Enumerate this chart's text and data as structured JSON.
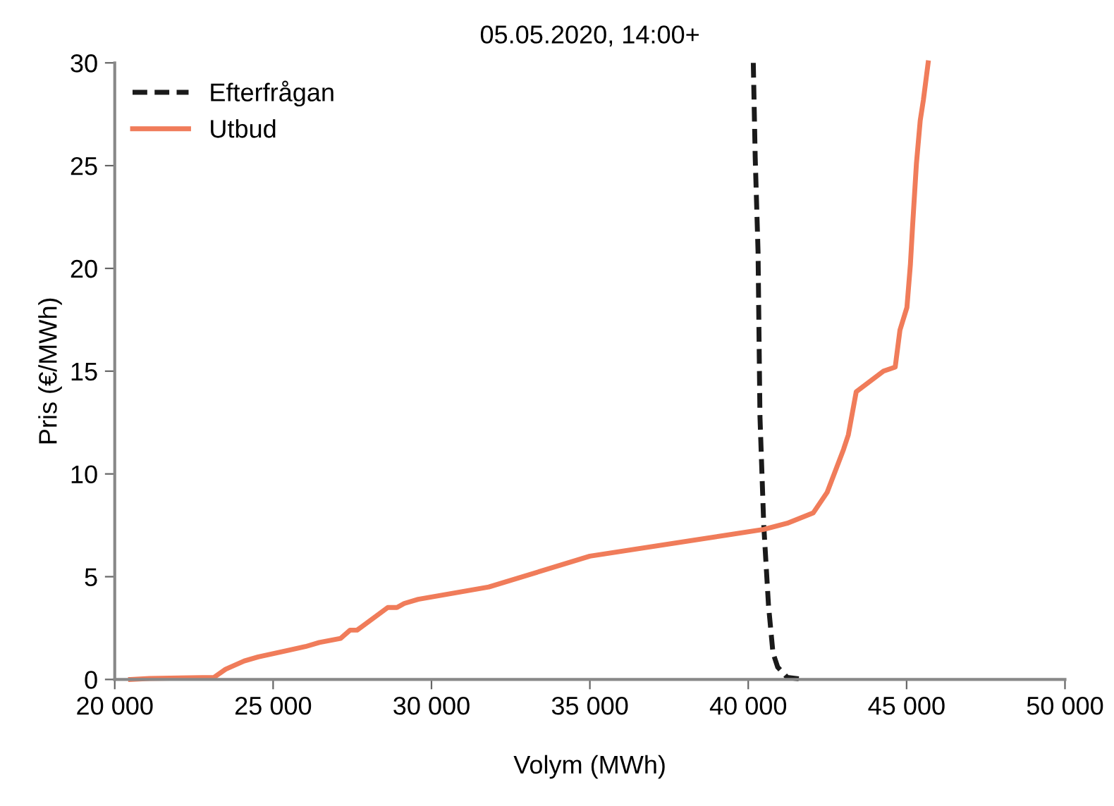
{
  "chart_data": {
    "type": "line",
    "title": "05.05.2020, 14:00+",
    "xlabel": "Volym (MWh)",
    "ylabel": "Pris (€/MWh)",
    "xlim": [
      20000,
      50000
    ],
    "xticks": [
      {
        "value": 20000,
        "label": "20 000"
      },
      {
        "value": 25000,
        "label": "25 000"
      },
      {
        "value": 30000,
        "label": "30 000"
      },
      {
        "value": 35000,
        "label": "35 000"
      },
      {
        "value": 40000,
        "label": "40 000"
      },
      {
        "value": 45000,
        "label": "45 000"
      },
      {
        "value": 50000,
        "label": "50 000"
      }
    ],
    "ylim": [
      0,
      30
    ],
    "yticks": [
      0,
      5,
      10,
      15,
      20,
      25,
      30
    ],
    "grid": false,
    "legend": "top left",
    "marker": "none",
    "series": [
      {
        "name": "Efterfrågan",
        "color": "#1a1a1a",
        "line_style": "dashed",
        "x": [
          40160,
          40220,
          40310,
          40370,
          40490,
          40640,
          40780,
          40930,
          41230,
          41750
        ],
        "values": [
          30,
          25.4,
          20.8,
          12.8,
          7.5,
          3.6,
          1.3,
          0.6,
          0.1,
          0
        ]
      },
      {
        "name": "Utbud",
        "color": "#f07c5a",
        "line_style": "solid",
        "x": [
          20500,
          21100,
          23130,
          23500,
          24090,
          24530,
          25420,
          26020,
          26460,
          27130,
          27430,
          27650,
          28620,
          28910,
          29140,
          29580,
          31810,
          35000,
          40490,
          41230,
          42050,
          42490,
          43010,
          43160,
          43410,
          44270,
          44640,
          44790,
          45010,
          45120,
          45190,
          45310,
          45430,
          45530,
          45680
        ],
        "values": [
          0,
          0.05,
          0.1,
          0.5,
          0.9,
          1.1,
          1.4,
          1.6,
          1.8,
          2.0,
          2.4,
          2.4,
          3.5,
          3.5,
          3.7,
          3.9,
          4.5,
          6.0,
          7.3,
          7.6,
          8.1,
          9.1,
          11.2,
          11.9,
          14.0,
          15.0,
          15.2,
          17.0,
          18.1,
          20.2,
          22.1,
          25.1,
          27.2,
          28.2,
          30
        ]
      }
    ]
  }
}
